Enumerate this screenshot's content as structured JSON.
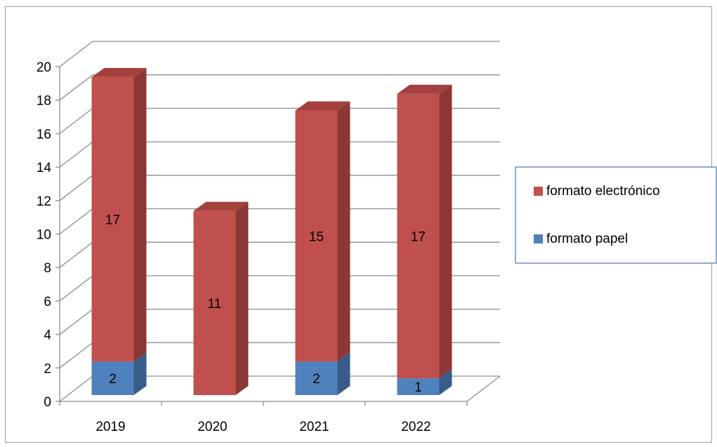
{
  "chart_data": {
    "type": "bar",
    "stacked": true,
    "three_d": true,
    "categories": [
      "2019",
      "2020",
      "2021",
      "2022"
    ],
    "series": [
      {
        "name": "formato papel",
        "values": [
          2,
          0,
          2,
          1
        ],
        "color": "#4F81BD",
        "side_color": "#385D8A",
        "top_color": "#6C96CC"
      },
      {
        "name": "formato electrónico",
        "values": [
          17,
          11,
          15,
          17
        ],
        "color": "#C0504D",
        "side_color": "#8C3836",
        "top_color": "#A4403D"
      }
    ],
    "data_labels": [
      {
        "series": 0,
        "category": 0,
        "text": "2"
      },
      {
        "series": 1,
        "category": 0,
        "text": "17"
      },
      {
        "series": 1,
        "category": 1,
        "text": "11"
      },
      {
        "series": 0,
        "category": 2,
        "text": "2"
      },
      {
        "series": 1,
        "category": 2,
        "text": "15"
      },
      {
        "series": 0,
        "category": 3,
        "text": "1"
      },
      {
        "series": 1,
        "category": 3,
        "text": "17"
      }
    ],
    "yticks": [
      "0",
      "2",
      "4",
      "6",
      "8",
      "10",
      "12",
      "14",
      "16",
      "18",
      "20"
    ],
    "ylim": [
      0,
      20
    ],
    "title": "",
    "xlabel": "",
    "ylabel": "",
    "grid": true,
    "legend_position": "right",
    "legend_order": [
      1,
      0
    ]
  }
}
